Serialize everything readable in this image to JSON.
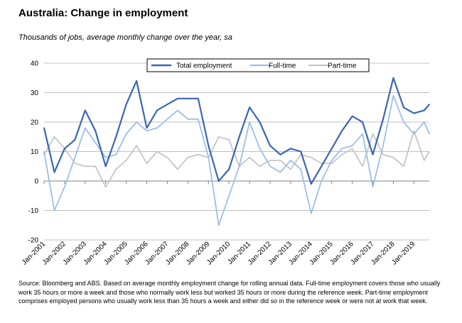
{
  "title": "Australia: Change in employment",
  "subtitle": "Thousands of jobs, average monthly change over the year, sa",
  "source": "Source: Bloomberg and ABS.  Based on average monthly  employment change for rolling annual data.  Full-time employment covers those who usually work 35 hours or more a week and those who normally work less but worked 35 hours or  more during the reference week.  Part-time employment comprises employed persons who usually work less than 35 hours a week and either did so in the reference week or were not at work that week.",
  "colors": {
    "total": "#3a66b5",
    "fulltime": "#9dbfe6",
    "parttime": "#c6c6c6",
    "grid": "#c0c0c0"
  },
  "chart_data": {
    "type": "line",
    "xlabel": "",
    "ylabel": "",
    "ylim": [
      -20,
      40
    ],
    "yticks": [
      -20,
      -10,
      0,
      10,
      20,
      30,
      40
    ],
    "grid": true,
    "legend_position": "top-right",
    "x_ticks": [
      "Jan-2001",
      "Jan-2002",
      "Jan-2003",
      "Jan-2004",
      "Jan-2005",
      "Jan-2006",
      "Jan-2007",
      "Jan-2008",
      "Jan-2009",
      "Jan-2010",
      "Jan-2011",
      "Jan-2012",
      "Jan-2013",
      "Jan-2014",
      "Jan-2015",
      "Jan-2016",
      "Jan-2017",
      "Jan-2018",
      "Jan-2019"
    ],
    "x_start": "Jan-2001",
    "x_end": "Oct-2019",
    "series": [
      {
        "name": "Total employment",
        "key": "total",
        "x": [
          "Jan-2001",
          "Jul-2001",
          "Jan-2002",
          "Jul-2002",
          "Jan-2003",
          "Jul-2003",
          "Jan-2004",
          "Jul-2004",
          "Jan-2005",
          "Jul-2005",
          "Jan-2006",
          "Jul-2006",
          "Jan-2007",
          "Jul-2007",
          "Jan-2008",
          "Jul-2008",
          "Jan-2009",
          "Jul-2009",
          "Jan-2010",
          "Jul-2010",
          "Jan-2011",
          "Jul-2011",
          "Jan-2012",
          "Jul-2012",
          "Jan-2013",
          "Jul-2013",
          "Jan-2014",
          "Jul-2014",
          "Jan-2015",
          "Jul-2015",
          "Jan-2016",
          "Jul-2016",
          "Jan-2017",
          "Jul-2017",
          "Jan-2018",
          "Jul-2018",
          "Jan-2019",
          "Jul-2019",
          "Oct-2019"
        ],
        "values": [
          18,
          3,
          11,
          14,
          24,
          17,
          5,
          15,
          26,
          34,
          18,
          24,
          26,
          28,
          28,
          28,
          12,
          0,
          4,
          15,
          25,
          20,
          12,
          9,
          11,
          10,
          -1,
          5,
          11,
          17,
          22,
          20,
          9,
          21,
          35,
          25,
          23,
          24,
          26
        ]
      },
      {
        "name": "Full-time",
        "key": "fulltime",
        "x": [
          "Jan-2001",
          "Jul-2001",
          "Jan-2002",
          "Jul-2002",
          "Jan-2003",
          "Jul-2003",
          "Jan-2004",
          "Jul-2004",
          "Jan-2005",
          "Jul-2005",
          "Jan-2006",
          "Jul-2006",
          "Jan-2007",
          "Jul-2007",
          "Jan-2008",
          "Jul-2008",
          "Jan-2009",
          "Jul-2009",
          "Jan-2010",
          "Jul-2010",
          "Jan-2011",
          "Jul-2011",
          "Jan-2012",
          "Jul-2012",
          "Jan-2013",
          "Jul-2013",
          "Jan-2014",
          "Jul-2014",
          "Jan-2015",
          "Jul-2015",
          "Jan-2016",
          "Jul-2016",
          "Jan-2017",
          "Jul-2017",
          "Jan-2018",
          "Jul-2018",
          "Jan-2019",
          "Jul-2019",
          "Oct-2019"
        ],
        "values": [
          10,
          -10,
          -2,
          8,
          18,
          13,
          8,
          9,
          16,
          20,
          17,
          18,
          21,
          24,
          21,
          21,
          8,
          -15,
          -5,
          5,
          20,
          11,
          5,
          3,
          7,
          4,
          -11,
          0,
          7,
          11,
          12,
          16,
          -2,
          12,
          29,
          20,
          16,
          20,
          16
        ]
      },
      {
        "name": "Part-time",
        "key": "parttime",
        "x": [
          "Jan-2001",
          "Jul-2001",
          "Jan-2002",
          "Jul-2002",
          "Jan-2003",
          "Jul-2003",
          "Jan-2004",
          "Jul-2004",
          "Jan-2005",
          "Jul-2005",
          "Jan-2006",
          "Jul-2006",
          "Jan-2007",
          "Jul-2007",
          "Jan-2008",
          "Jul-2008",
          "Jan-2009",
          "Jul-2009",
          "Jan-2010",
          "Jul-2010",
          "Jan-2011",
          "Jul-2011",
          "Jan-2012",
          "Jul-2012",
          "Jan-2013",
          "Jul-2013",
          "Jan-2014",
          "Jul-2014",
          "Jan-2015",
          "Jul-2015",
          "Jan-2016",
          "Jul-2016",
          "Jan-2017",
          "Jul-2017",
          "Jan-2018",
          "Jul-2018",
          "Jan-2019",
          "Jul-2019",
          "Oct-2019"
        ],
        "values": [
          9,
          15,
          11,
          6,
          5,
          5,
          -2,
          4,
          7,
          12,
          6,
          10,
          8,
          4,
          8,
          9,
          8,
          15,
          14,
          5,
          8,
          5,
          7,
          7,
          4,
          9,
          8,
          6,
          6,
          9,
          11,
          5,
          16,
          9,
          8,
          5,
          17,
          7,
          10
        ]
      }
    ]
  }
}
